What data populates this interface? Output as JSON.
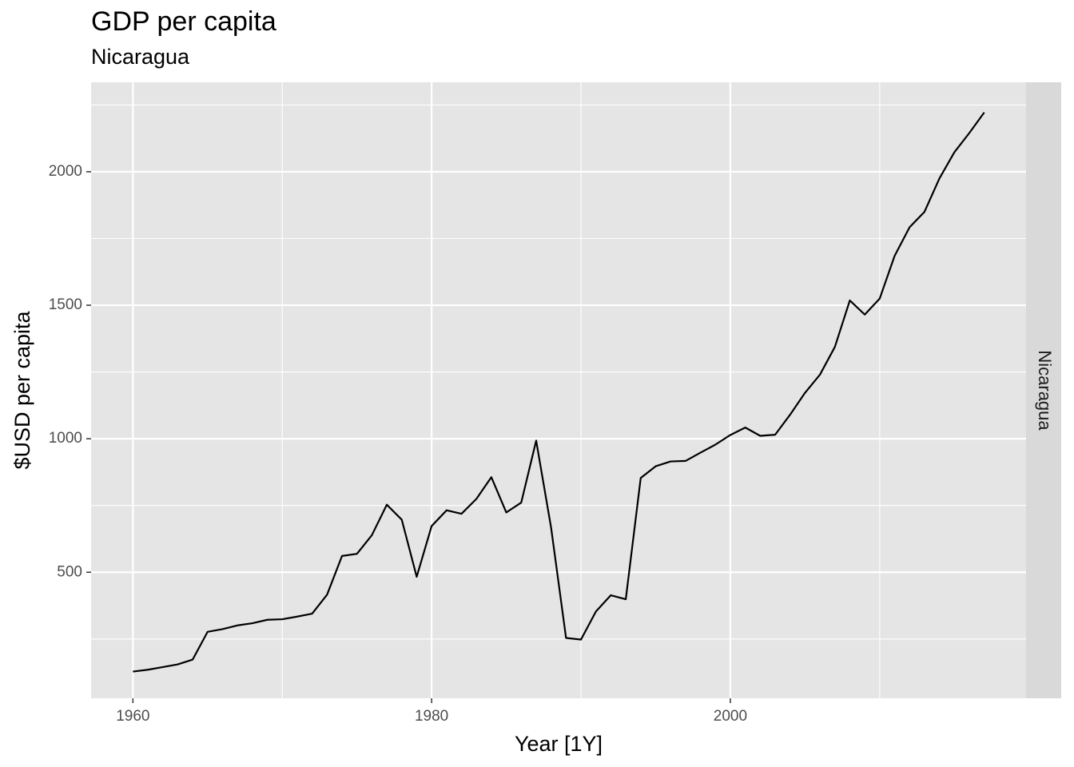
{
  "chart_data": {
    "type": "line",
    "title": "GDP per capita",
    "subtitle": "Nicaragua",
    "xlabel": "Year [1Y]",
    "ylabel": "$USD per capita",
    "facet_label": "Nicaragua",
    "xlim": [
      1957.2,
      2019.8
    ],
    "ylim": [
      28,
      2335
    ],
    "x_ticks": [
      1960,
      1980,
      2000
    ],
    "y_ticks": [
      500,
      1000,
      1500,
      2000
    ],
    "grid": true,
    "line_color": "#000000",
    "panel_background": "#e5e5e5",
    "strip_background": "#d9d9d9",
    "series": [
      {
        "x": [
          1960,
          1961,
          1962,
          1963,
          1964,
          1965,
          1966,
          1967,
          1968,
          1969,
          1970,
          1971,
          1972,
          1973,
          1974,
          1975,
          1976,
          1977,
          1978,
          1979,
          1980,
          1981,
          1982,
          1983,
          1984,
          1985,
          1986,
          1987,
          1988,
          1989,
          1990,
          1991,
          1992,
          1993,
          1994,
          1995,
          1996,
          1997,
          1998,
          1999,
          2000,
          2001,
          2002,
          2003,
          2004,
          2005,
          2006,
          2007,
          2008,
          2009,
          2010,
          2011,
          2012,
          2013,
          2014,
          2015,
          2016,
          2017
        ],
        "y": [
          128,
          135,
          145,
          155,
          173,
          277,
          287,
          301,
          309,
          322,
          324,
          334,
          345,
          416,
          561,
          569,
          639,
          753,
          697,
          483,
          673,
          732,
          719,
          775,
          856,
          724,
          761,
          993,
          667,
          254,
          248,
          353,
          414,
          399,
          853,
          897,
          915,
          917,
          948,
          978,
          1014,
          1042,
          1011,
          1015,
          1090,
          1172,
          1240,
          1344,
          1518,
          1465,
          1525,
          1685,
          1792,
          1850,
          1975,
          2073,
          2145,
          2222
        ]
      }
    ]
  }
}
